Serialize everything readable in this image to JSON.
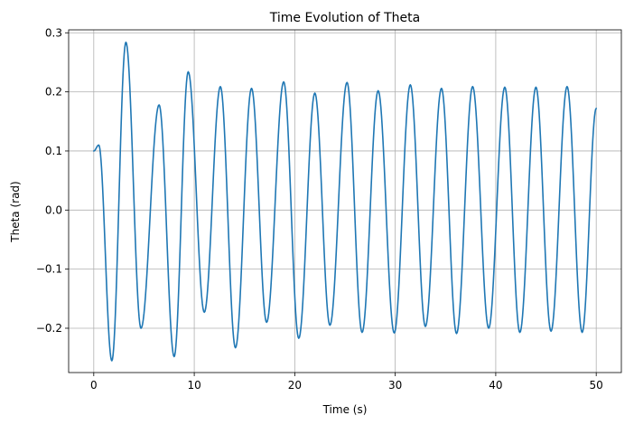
{
  "chart_data": {
    "type": "line",
    "title": "Time Evolution of Theta",
    "xlabel": "Time (s)",
    "ylabel": "Theta (rad)",
    "xlim": [
      -2.5,
      52.5
    ],
    "ylim": [
      -0.275,
      0.305
    ],
    "xticks": [
      0,
      10,
      20,
      30,
      40,
      50
    ],
    "xtick_labels": [
      "0",
      "10",
      "20",
      "30",
      "40",
      "50"
    ],
    "yticks": [
      -0.2,
      -0.1,
      0.0,
      0.1,
      0.2,
      0.3
    ],
    "ytick_labels": [
      "−0.2",
      "−0.1",
      "0.0",
      "0.1",
      "0.2",
      "0.3"
    ],
    "grid": true,
    "colors": {
      "series": "#1f77b4"
    },
    "series": [
      {
        "extrema": [
          [
            0.0,
            0.1
          ],
          [
            0.5,
            0.11
          ],
          [
            1.8,
            -0.255
          ],
          [
            3.2,
            0.284
          ],
          [
            4.7,
            -0.2
          ],
          [
            6.5,
            0.178
          ],
          [
            8.0,
            -0.248
          ],
          [
            9.4,
            0.234
          ],
          [
            11.0,
            -0.173
          ],
          [
            12.6,
            0.209
          ],
          [
            14.1,
            -0.233
          ],
          [
            15.7,
            0.206
          ],
          [
            17.2,
            -0.19
          ],
          [
            18.9,
            0.217
          ],
          [
            20.4,
            -0.217
          ],
          [
            22.0,
            0.198
          ],
          [
            23.5,
            -0.195
          ],
          [
            25.2,
            0.216
          ],
          [
            26.7,
            -0.207
          ],
          [
            28.3,
            0.202
          ],
          [
            29.9,
            -0.208
          ],
          [
            31.5,
            0.212
          ],
          [
            33.0,
            -0.197
          ],
          [
            34.6,
            0.206
          ],
          [
            36.1,
            -0.209
          ],
          [
            37.7,
            0.209
          ],
          [
            39.3,
            -0.2
          ],
          [
            40.9,
            0.208
          ],
          [
            42.4,
            -0.207
          ],
          [
            44.0,
            0.208
          ],
          [
            45.5,
            -0.205
          ],
          [
            47.1,
            0.209
          ],
          [
            48.6,
            -0.207
          ],
          [
            50.0,
            0.172
          ]
        ]
      }
    ]
  }
}
